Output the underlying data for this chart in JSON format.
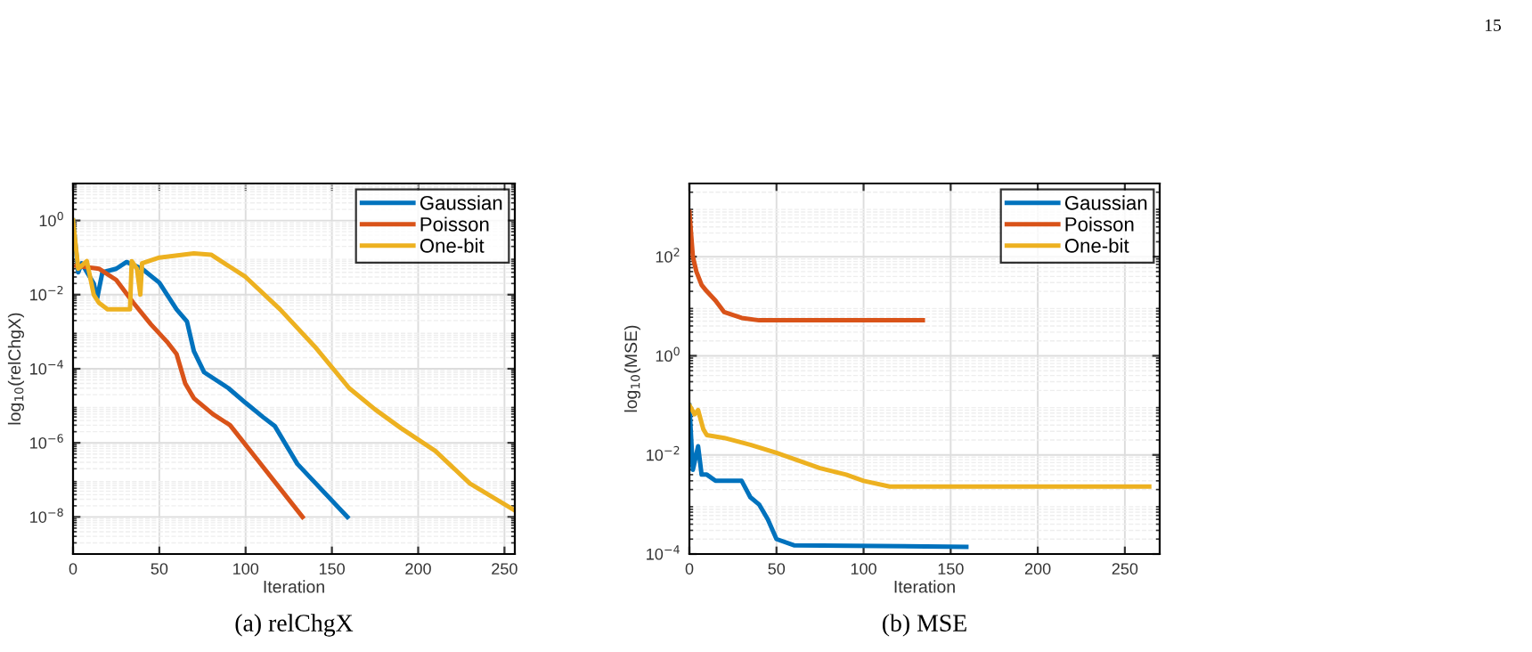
{
  "chart_data": [
    {
      "type": "line",
      "title": "(a) relChgX",
      "xlabel": "Iteration",
      "ylabel": "log$_{10}$(relChgX)",
      "log": "y",
      "grid": true,
      "legend": "top right",
      "annotations": [
        "15"
      ],
      "xlim": [
        0,
        256
      ],
      "xticks": [
        0,
        50,
        100,
        150,
        200,
        250
      ],
      "ylim": [
        1e-09,
        10
      ],
      "yticks": [
        {
          "value": 1e-08,
          "label": "10$^{−8}$"
        },
        {
          "value": 1e-06,
          "label": "10$^{−6}$"
        },
        {
          "value": 0.0001,
          "label": "10$^{−4}$"
        },
        {
          "value": 0.01,
          "label": "10$^{−2}$"
        },
        {
          "value": 1,
          "label": "10$^{0}$"
        }
      ],
      "series": [
        {
          "name": "Gaussian",
          "color": "#0072bd",
          "x": [
            0,
            3,
            5,
            12,
            14,
            17,
            25,
            31,
            40,
            50,
            60,
            66,
            70,
            76,
            90,
            100,
            110,
            117,
            130,
            159
          ],
          "values": [
            1,
            0.04,
            0.07,
            0.02,
            0.008,
            0.04,
            0.05,
            0.076,
            0.05,
            0.021,
            0.004,
            0.0019,
            0.0003,
            8e-05,
            3e-05,
            1.2e-05,
            5e-06,
            2.8e-06,
            2.7e-07,
            1e-08
          ]
        },
        {
          "name": "Poisson",
          "color": "#d95319",
          "x": [
            2,
            15,
            25,
            35,
            45,
            55,
            60,
            65,
            70,
            81,
            91,
            133
          ],
          "values": [
            0.06,
            0.05,
            0.025,
            0.006,
            0.0016,
            0.0005,
            0.00025,
            4e-05,
            1.6e-05,
            6e-06,
            3e-06,
            1e-08
          ]
        },
        {
          "name": "One-bit",
          "color": "#edb120",
          "x": [
            0,
            3,
            8,
            12,
            15,
            20,
            33,
            34,
            37,
            39,
            40,
            50,
            70,
            80,
            100,
            120,
            140,
            160,
            175,
            190,
            210,
            230,
            256
          ],
          "values": [
            1,
            0.05,
            0.08,
            0.01,
            0.006,
            0.004,
            0.004,
            0.08,
            0.05,
            0.01,
            0.07,
            0.1,
            0.13,
            0.12,
            0.03,
            0.004,
            0.0004,
            3e-05,
            8e-06,
            2.5e-06,
            6e-07,
            8e-08,
            1.5e-08
          ]
        }
      ]
    },
    {
      "type": "line",
      "title": "(b) MSE",
      "xlabel": "Iteration",
      "ylabel": "log$_{10}$(MSE)",
      "log": "y",
      "grid": true,
      "legend": "top right",
      "xlim": [
        0,
        270
      ],
      "xticks": [
        0,
        50,
        100,
        150,
        200,
        250
      ],
      "ylim": [
        0.0001,
        3000
      ],
      "yticks": [
        {
          "value": 0.0001,
          "label": "10$^{−4}$"
        },
        {
          "value": 0.01,
          "label": "10$^{−2}$"
        },
        {
          "value": 1,
          "label": "10$^{0}$"
        },
        {
          "value": 100,
          "label": "10$^{2}$"
        }
      ],
      "series": [
        {
          "name": "Gaussian",
          "color": "#0072bd",
          "x": [
            0,
            2,
            5,
            7,
            10,
            15,
            30,
            35,
            40,
            45,
            50,
            60,
            159
          ],
          "values": [
            0.1,
            0.005,
            0.015,
            0.004,
            0.004,
            0.003,
            0.003,
            0.0014,
            0.001,
            0.0005,
            0.0002,
            0.00015,
            0.00014
          ]
        },
        {
          "name": "Poisson",
          "color": "#d95319",
          "x": [
            0,
            2,
            4,
            7,
            10,
            15,
            20,
            30,
            40,
            134
          ],
          "values": [
            800,
            100,
            50,
            27,
            20,
            13,
            7.6,
            5.8,
            5.2,
            5.2
          ]
        },
        {
          "name": "One-bit",
          "color": "#edb120",
          "x": [
            0,
            3,
            5,
            8,
            10,
            20,
            35,
            50,
            75,
            90,
            100,
            115,
            264
          ],
          "values": [
            0.1,
            0.066,
            0.08,
            0.033,
            0.025,
            0.022,
            0.016,
            0.011,
            0.0054,
            0.004,
            0.003,
            0.0023,
            0.0023
          ]
        }
      ]
    }
  ]
}
